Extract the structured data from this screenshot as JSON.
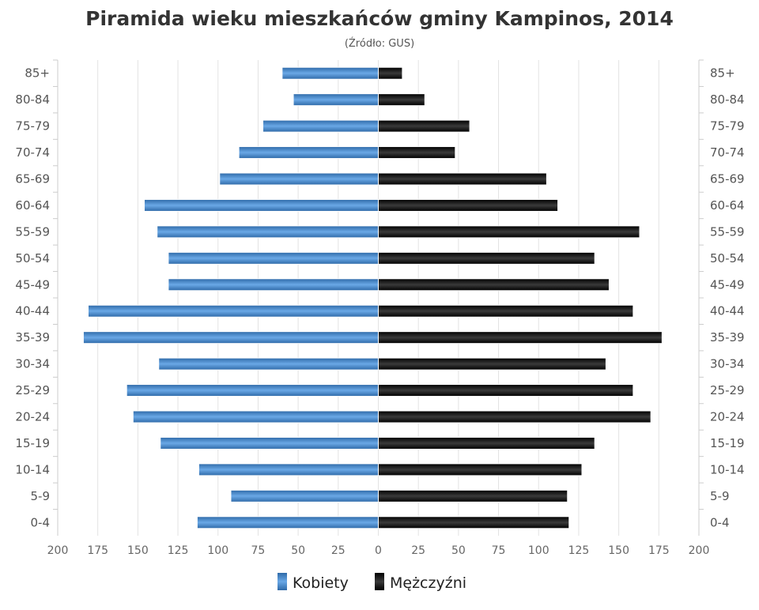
{
  "chart_data": {
    "type": "bar",
    "orientation": "horizontal-population-pyramid",
    "title": "Piramida wieku mieszkańców gminy Kampinos, 2014",
    "subtitle": "(Źródło: GUS)",
    "categories": [
      "85+",
      "80-84",
      "75-79",
      "70-74",
      "65-69",
      "60-64",
      "55-59",
      "50-54",
      "45-49",
      "40-44",
      "35-39",
      "30-34",
      "25-29",
      "20-24",
      "15-19",
      "10-14",
      "5-9",
      "0-4"
    ],
    "series": [
      {
        "name": "Kobiety",
        "color": "#4a86c5",
        "side": "left",
        "values": [
          60,
          53,
          72,
          87,
          99,
          146,
          138,
          131,
          131,
          181,
          184,
          137,
          157,
          153,
          136,
          112,
          92,
          113
        ]
      },
      {
        "name": "Mężczyźni",
        "color": "#1a1a1a",
        "side": "right",
        "values": [
          15,
          29,
          57,
          48,
          105,
          112,
          163,
          135,
          144,
          159,
          177,
          142,
          159,
          170,
          135,
          127,
          118,
          119
        ]
      }
    ],
    "xlim": [
      -200,
      200
    ],
    "xticks": [
      "200",
      "175",
      "150",
      "125",
      "100",
      "75",
      "50",
      "25",
      "0",
      "25",
      "50",
      "75",
      "100",
      "125",
      "150",
      "175",
      "200"
    ],
    "grid": true,
    "legend": "bottom"
  }
}
